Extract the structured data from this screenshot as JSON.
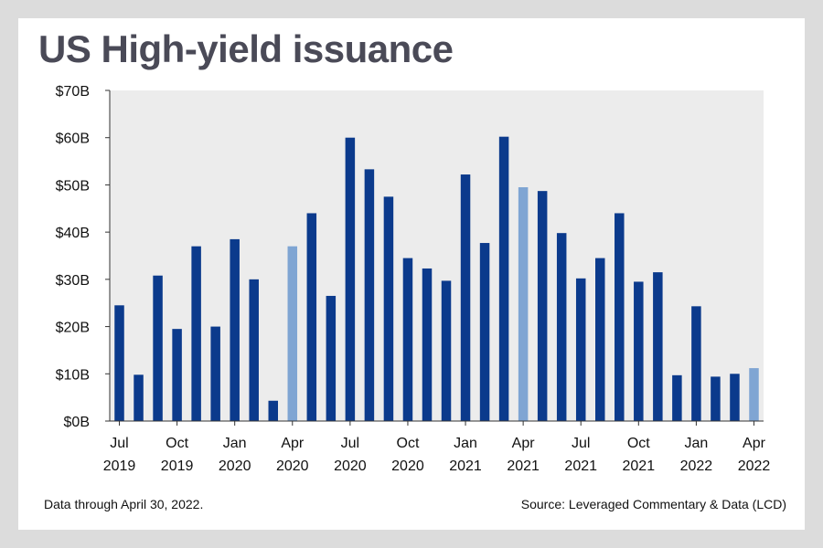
{
  "title": "US High-yield issuance",
  "footnote": "Data through April 30, 2022.",
  "source": "Source: Leveraged Commentary & Data (LCD)",
  "colors": {
    "bar": "#0b3a8c",
    "highlight": "#7fa5d3",
    "plot_bg": "#ececec",
    "axis": "#333333"
  },
  "chart_data": {
    "type": "bar",
    "title": "US High-yield issuance",
    "xlabel": "",
    "ylabel": "",
    "ylim": [
      0,
      70
    ],
    "yticks": [
      "$0B",
      "$10B",
      "$20B",
      "$30B",
      "$40B",
      "$50B",
      "$60B",
      "$70B"
    ],
    "ytick_values": [
      0,
      10,
      20,
      30,
      40,
      50,
      60,
      70
    ],
    "grid": false,
    "categories": [
      "Jul 2019",
      "Aug 2019",
      "Sep 2019",
      "Oct 2019",
      "Nov 2019",
      "Dec 2019",
      "Jan 2020",
      "Feb 2020",
      "Mar 2020",
      "Apr 2020",
      "May 2020",
      "Jun 2020",
      "Jul 2020",
      "Aug 2020",
      "Sep 2020",
      "Oct 2020",
      "Nov 2020",
      "Dec 2020",
      "Jan 2021",
      "Feb 2021",
      "Mar 2021",
      "Apr 2021",
      "May 2021",
      "Jun 2021",
      "Jul 2021",
      "Aug 2021",
      "Sep 2021",
      "Oct 2021",
      "Nov 2021",
      "Dec 2021",
      "Jan 2022",
      "Feb 2022",
      "Mar 2022",
      "Apr 2022"
    ],
    "values": [
      24.5,
      9.8,
      30.8,
      19.5,
      37.0,
      20.0,
      38.5,
      30.0,
      4.3,
      37.0,
      44.0,
      26.5,
      60.0,
      53.3,
      47.5,
      34.5,
      32.3,
      29.7,
      52.2,
      37.7,
      60.2,
      49.5,
      48.7,
      39.8,
      30.2,
      34.5,
      44.0,
      29.5,
      31.5,
      9.7,
      24.3,
      9.4,
      10.0,
      11.2
    ],
    "highlighted": [
      false,
      false,
      false,
      false,
      false,
      false,
      false,
      false,
      false,
      true,
      false,
      false,
      false,
      false,
      false,
      false,
      false,
      false,
      false,
      false,
      false,
      true,
      false,
      false,
      false,
      false,
      false,
      false,
      false,
      false,
      false,
      false,
      false,
      true
    ],
    "xtick_labels": [
      {
        "index": 0,
        "month": "Jul",
        "year": "2019"
      },
      {
        "index": 3,
        "month": "Oct",
        "year": "2019"
      },
      {
        "index": 6,
        "month": "Jan",
        "year": "2020"
      },
      {
        "index": 9,
        "month": "Apr",
        "year": "2020"
      },
      {
        "index": 12,
        "month": "Jul",
        "year": "2020"
      },
      {
        "index": 15,
        "month": "Oct",
        "year": "2020"
      },
      {
        "index": 18,
        "month": "Jan",
        "year": "2021"
      },
      {
        "index": 21,
        "month": "Apr",
        "year": "2021"
      },
      {
        "index": 24,
        "month": "Jul",
        "year": "2021"
      },
      {
        "index": 27,
        "month": "Oct",
        "year": "2021"
      },
      {
        "index": 30,
        "month": "Jan",
        "year": "2022"
      },
      {
        "index": 33,
        "month": "Apr",
        "year": "2022"
      }
    ]
  }
}
